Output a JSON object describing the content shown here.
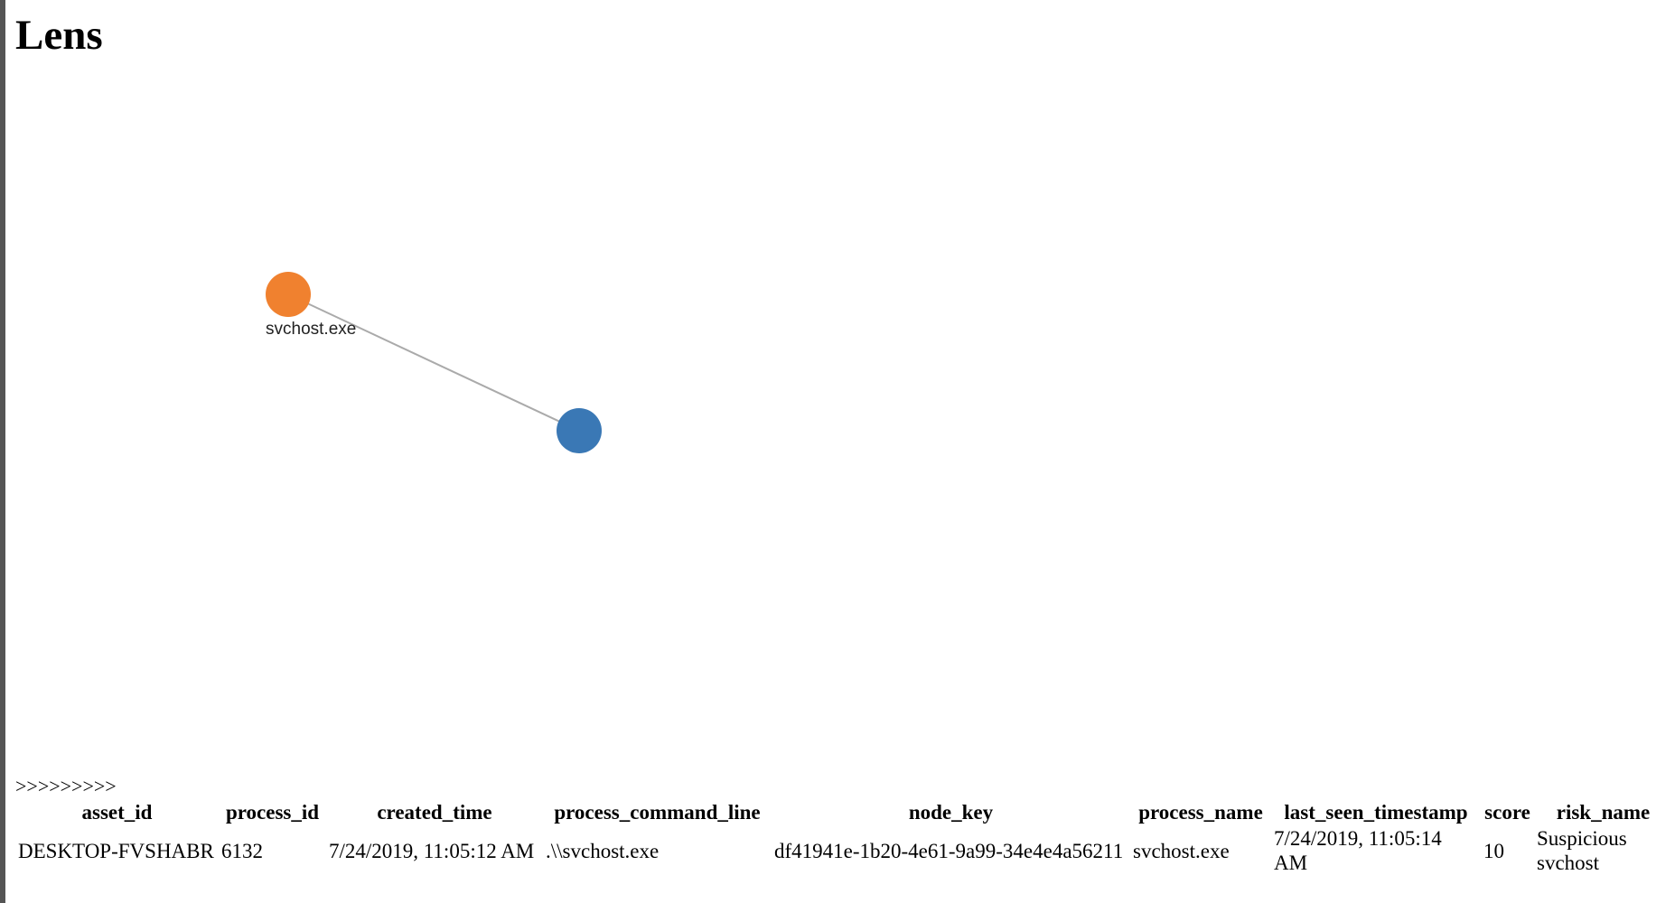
{
  "header": {
    "title": "Lens"
  },
  "graph": {
    "nodes": [
      {
        "label": "svchost.exe"
      }
    ]
  },
  "prompt": ">>>>>>>>>",
  "table": {
    "columns": [
      "asset_id",
      "process_id",
      "created_time",
      "process_command_line",
      "node_key",
      "process_name",
      "last_seen_timestamp",
      "score",
      "risk_name"
    ],
    "rows": [
      [
        "DESKTOP-FVSHABR",
        "6132",
        "7/24/2019, 11:05:12 AM",
        ".\\\\svchost.exe",
        "df41941e-1b20-4e61-9a99-34e4e4a56211",
        "svchost.exe",
        "7/24/2019, 11:05:14 AM",
        "10",
        "Suspicious svchost"
      ]
    ]
  }
}
